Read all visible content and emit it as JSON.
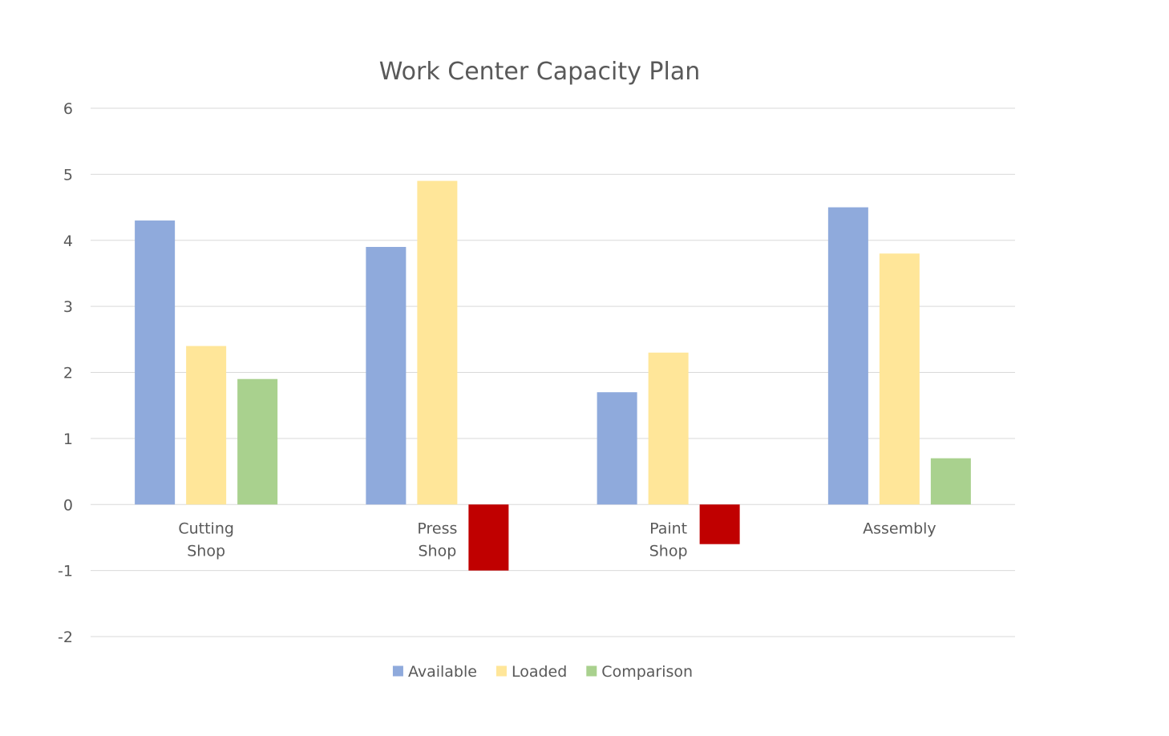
{
  "chart_data": {
    "type": "bar",
    "title": "Work Center Capacity Plan",
    "xlabel": "",
    "ylabel": "",
    "ylim": [
      -2,
      6
    ],
    "yticks": [
      6,
      5,
      4,
      3,
      2,
      1,
      0,
      -1,
      -2
    ],
    "grid": true,
    "legend_position": "bottom",
    "categories": [
      [
        "Cutting",
        "Shop"
      ],
      [
        "Press",
        "Shop"
      ],
      [
        "Paint",
        "Shop"
      ],
      [
        "Assembly"
      ]
    ],
    "series": [
      {
        "name": "Available",
        "color": "#8FAADC",
        "values": [
          4.3,
          3.9,
          1.7,
          4.5
        ]
      },
      {
        "name": "Loaded",
        "color": "#FFE699",
        "values": [
          2.4,
          4.9,
          2.3,
          3.8
        ]
      },
      {
        "name": "Comparison",
        "color": "#A9D18E",
        "negative_color": "#C00000",
        "values": [
          1.9,
          -1.0,
          -0.6,
          0.7
        ]
      }
    ]
  }
}
